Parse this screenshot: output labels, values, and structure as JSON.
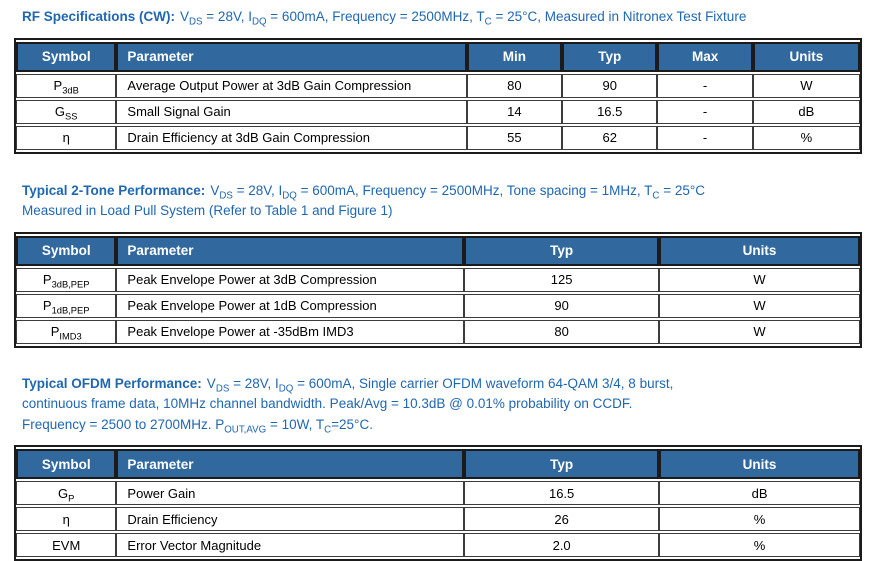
{
  "colors": {
    "table_header_bg": "#31699E",
    "table_header_text": "#ffffff",
    "heading_blue": "#2067B2",
    "body_text": "#000000"
  },
  "sections": [
    {
      "heading_bold": "RF Specifications (CW):",
      "heading_line1": [
        {
          "t": "V"
        },
        {
          "s": "DS"
        },
        {
          "t": " = 28V, I"
        },
        {
          "s": "DQ"
        },
        {
          "t": " = 600mA,  Frequency = 2500MHz, T"
        },
        {
          "s": "C"
        },
        {
          "t": " = 25°C, Measured in Nitronex Test Fixture"
        }
      ],
      "table": {
        "headers": [
          "Symbol",
          "Parameter",
          "Min",
          "Typ",
          "Max",
          "Units"
        ],
        "rows": [
          {
            "symbol": [
              {
                "t": "P"
              },
              {
                "s": "3dB"
              }
            ],
            "parameter": "Average Output Power at 3dB Gain Compression",
            "min": "80",
            "typ": "90",
            "max": "-",
            "units": "W"
          },
          {
            "symbol": [
              {
                "t": "G"
              },
              {
                "s": "SS"
              }
            ],
            "parameter": "Small Signal Gain",
            "min": "14",
            "typ": "16.5",
            "max": "-",
            "units": "dB"
          },
          {
            "symbol": [
              {
                "t": "η"
              }
            ],
            "parameter": "Drain Efficiency at 3dB Gain Compression",
            "min": "55",
            "typ": "62",
            "max": "-",
            "units": "%"
          }
        ]
      }
    },
    {
      "heading_bold": "Typical 2-Tone Performance:",
      "heading_line1": [
        {
          "t": "V"
        },
        {
          "s": "DS"
        },
        {
          "t": " = 28V, I"
        },
        {
          "s": "DQ"
        },
        {
          "t": " = 600mA, Frequency = 2500MHz, Tone spacing = 1MHz, T"
        },
        {
          "s": "C"
        },
        {
          "t": " = 25°C"
        }
      ],
      "heading_line2": "Measured in Load Pull System (Refer to Table 1 and Figure 1)",
      "table": {
        "headers": [
          "Symbol",
          "Parameter",
          "Typ",
          "Units"
        ],
        "rows": [
          {
            "symbol": [
              {
                "t": "P"
              },
              {
                "s": "3dB,PEP"
              }
            ],
            "parameter": "Peak Envelope Power at 3dB Compression",
            "typ": "125",
            "units": "W"
          },
          {
            "symbol": [
              {
                "t": "P"
              },
              {
                "s": "1dB,PEP"
              }
            ],
            "parameter": "Peak Envelope Power at 1dB Compression",
            "typ": "90",
            "units": "W"
          },
          {
            "symbol": [
              {
                "t": "P"
              },
              {
                "s": "IMD3"
              }
            ],
            "parameter": "Peak Envelope Power at -35dBm IMD3",
            "typ": "80",
            "units": "W"
          }
        ]
      }
    },
    {
      "heading_bold": "Typical OFDM Performance:",
      "heading_line1": [
        {
          "t": "V"
        },
        {
          "s": "DS"
        },
        {
          "t": " = 28V, I"
        },
        {
          "s": "DQ"
        },
        {
          "t": " = 600mA, Single carrier OFDM waveform 64-QAM 3/4, 8 burst,"
        }
      ],
      "heading_line2": "continuous frame data, 10MHz channel bandwidth. Peak/Avg = 10.3dB @ 0.01% probability on CCDF.",
      "heading_line3": [
        {
          "t": "Frequency = 2500 to 2700MHz. P"
        },
        {
          "s": "OUT,AVG"
        },
        {
          "t": " = 10W, T"
        },
        {
          "s": "C"
        },
        {
          "t": "=25°C."
        }
      ],
      "table": {
        "headers": [
          "Symbol",
          "Parameter",
          "Typ",
          "Units"
        ],
        "rows": [
          {
            "symbol": [
              {
                "t": "G"
              },
              {
                "s": "P"
              }
            ],
            "parameter": "Power Gain",
            "typ": "16.5",
            "units": "dB"
          },
          {
            "symbol": [
              {
                "t": "η"
              }
            ],
            "parameter": "Drain Efficiency",
            "typ": "26",
            "units": "%"
          },
          {
            "symbol": [
              {
                "t": "EVM"
              }
            ],
            "parameter": "Error Vector Magnitude",
            "typ": "2.0",
            "units": "%"
          }
        ]
      }
    }
  ]
}
